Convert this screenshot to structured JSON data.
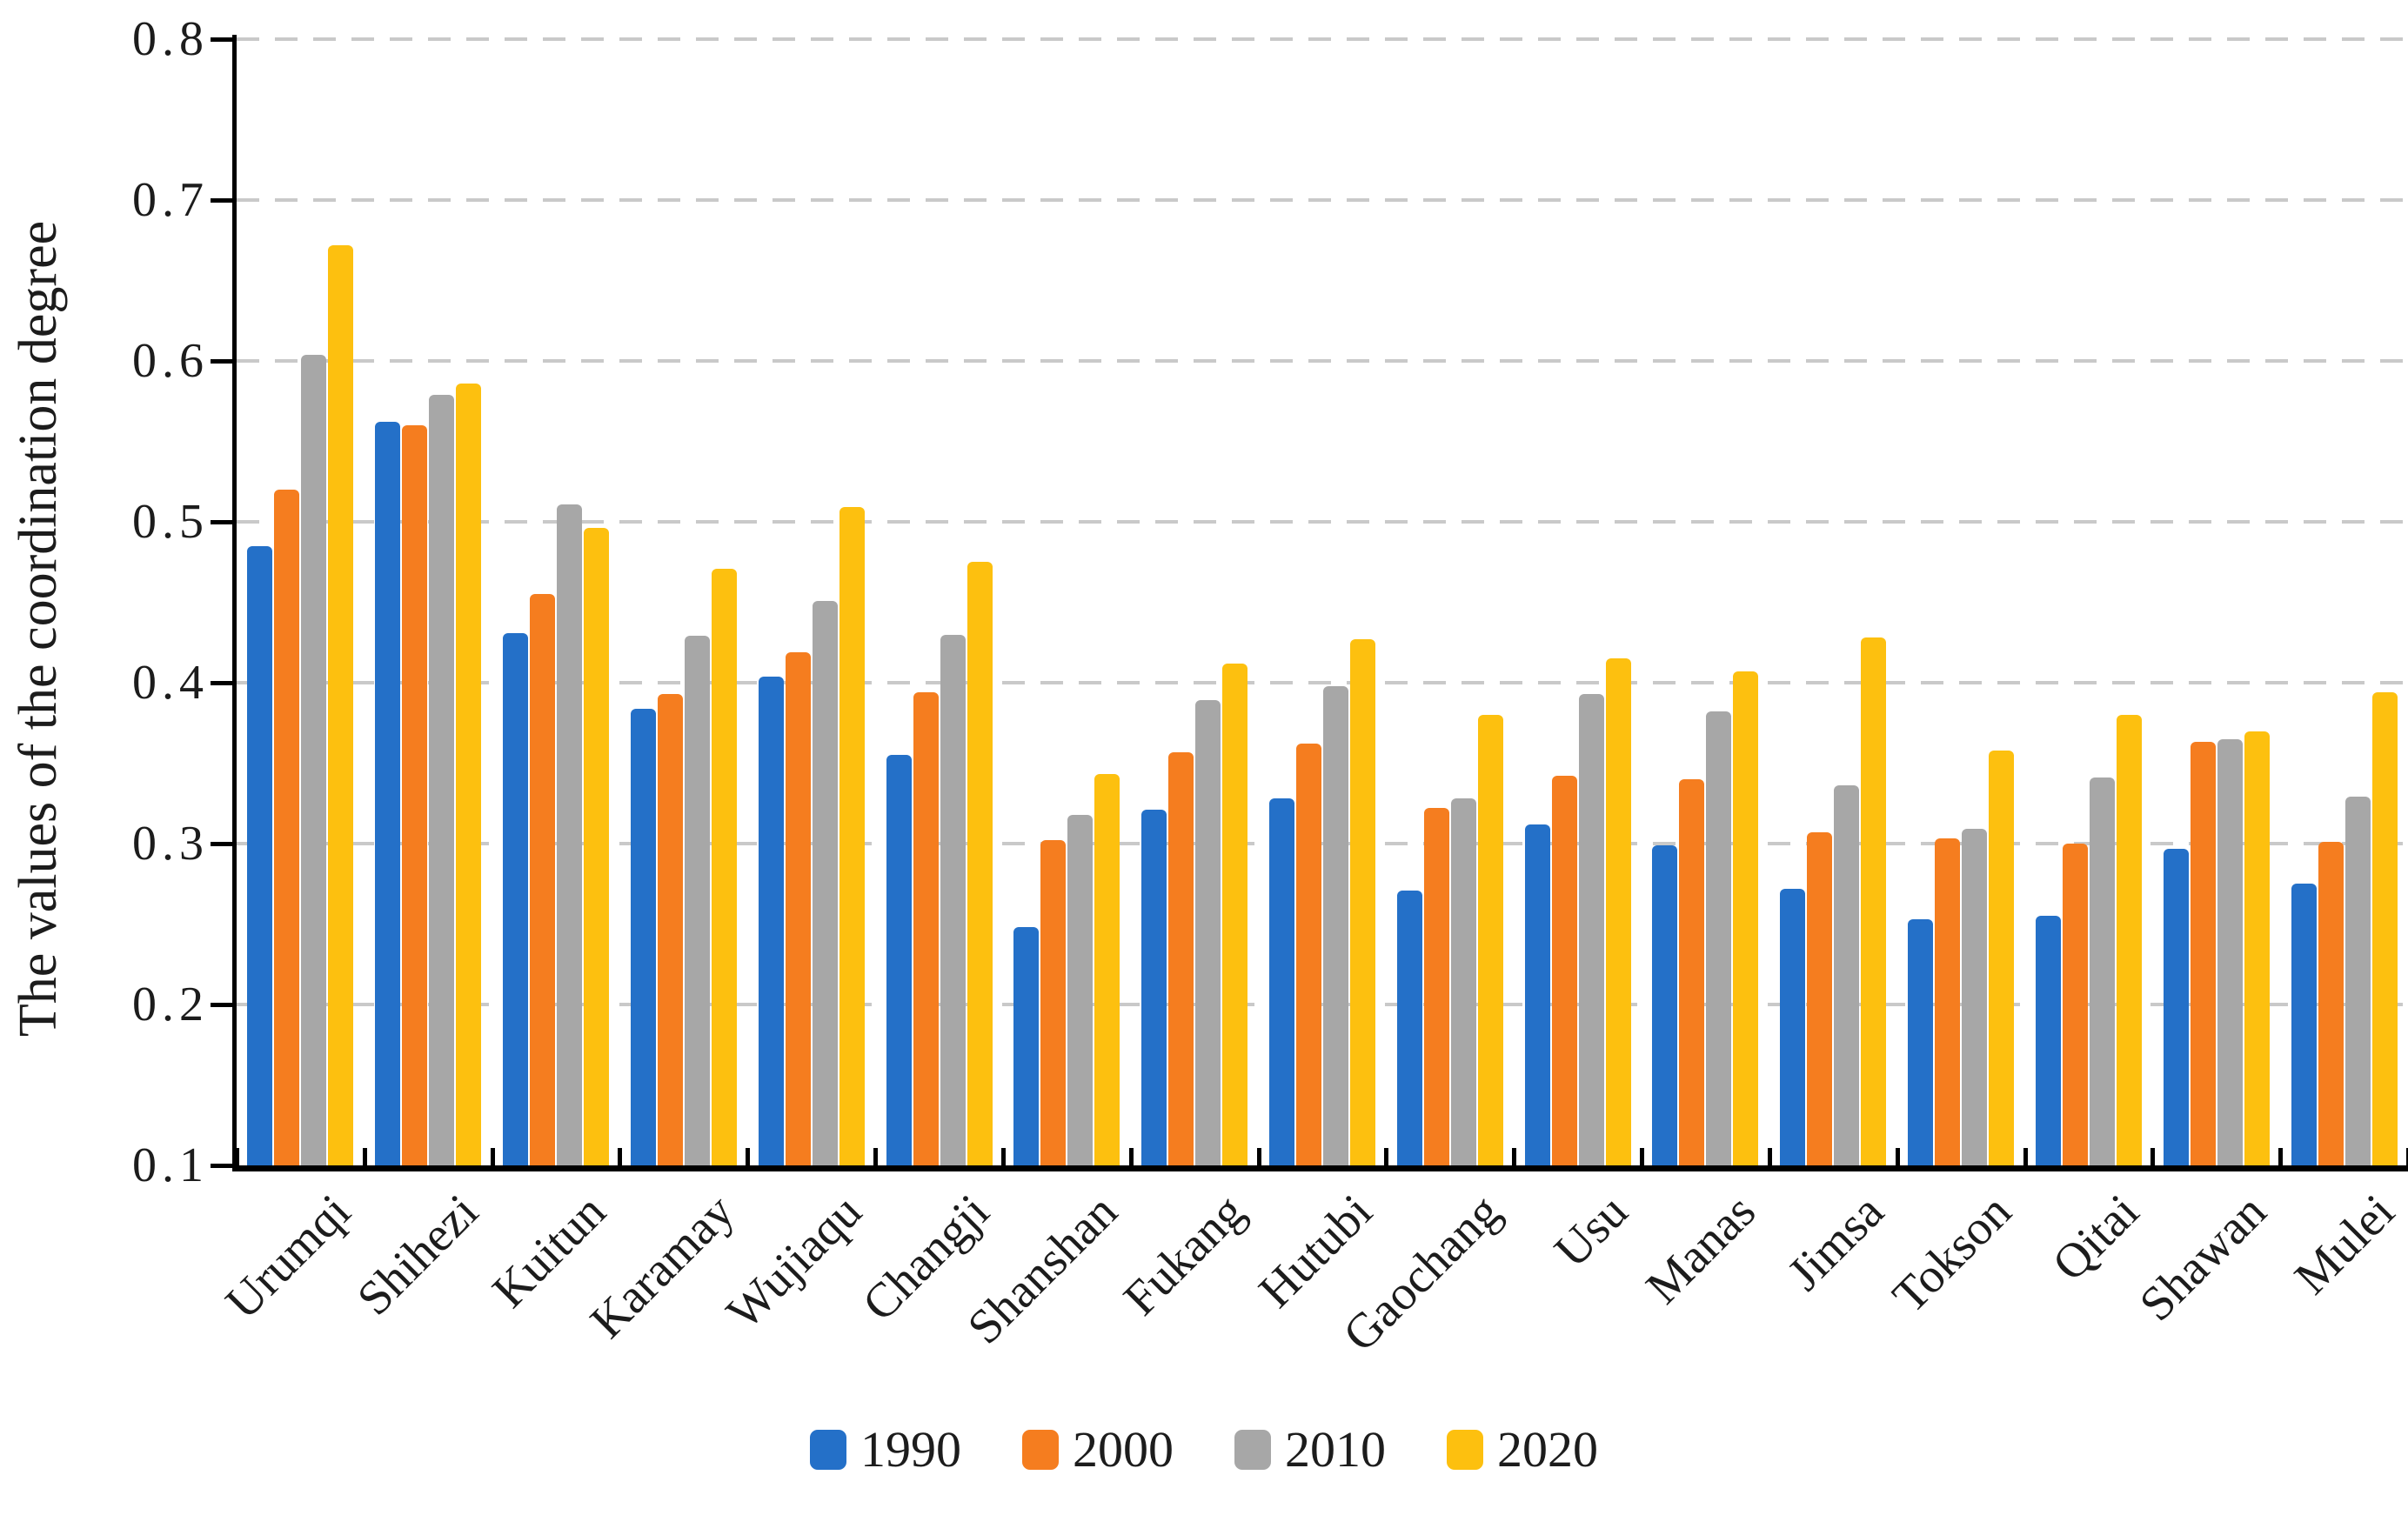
{
  "figure": {
    "background": "#ffffff",
    "axis_color": "#000000",
    "gridline_color": "#c9c9c9",
    "text_color": "#1c1c1c"
  },
  "chart_data": {
    "type": "bar",
    "title": "",
    "xlabel": "",
    "ylabel": "The values of the coordination degree",
    "ylim": [
      0.1,
      0.8
    ],
    "ytick_step": 0.1,
    "y_tick_labels": [
      "0.8",
      "0.7",
      "0.6",
      "0.5",
      "0.4",
      "0.3",
      "0.2",
      "0.1"
    ],
    "grid": "horizontal-dashed",
    "legend_position": "bottom",
    "categories": [
      "Urumqi",
      "Shihezi",
      "Kuitun",
      "Karamay",
      "Wujiaqu",
      "Changji",
      "Shanshan",
      "Fukang",
      "Hutubi",
      "Gaochang",
      "Usu",
      "Manas",
      "Jimsa",
      "Tokson",
      "Qitai",
      "Shawan",
      "Mulei"
    ],
    "series": [
      {
        "name": "1990",
        "color": "#2470C8",
        "values": [
          0.485,
          0.562,
          0.431,
          0.384,
          0.404,
          0.355,
          0.248,
          0.321,
          0.328,
          0.271,
          0.312,
          0.299,
          0.272,
          0.253,
          0.255,
          0.297,
          0.275
        ]
      },
      {
        "name": "2000",
        "color": "#F57D1F",
        "values": [
          0.52,
          0.56,
          0.455,
          0.393,
          0.419,
          0.394,
          0.302,
          0.357,
          0.362,
          0.322,
          0.342,
          0.34,
          0.307,
          0.303,
          0.3,
          0.363,
          0.301
        ]
      },
      {
        "name": "2010",
        "color": "#A7A7A7",
        "values": [
          0.604,
          0.579,
          0.511,
          0.429,
          0.451,
          0.43,
          0.318,
          0.389,
          0.398,
          0.328,
          0.393,
          0.382,
          0.336,
          0.309,
          0.341,
          0.365,
          0.329
        ]
      },
      {
        "name": "2020",
        "color": "#FDC00F",
        "values": [
          0.672,
          0.586,
          0.496,
          0.471,
          0.509,
          0.475,
          0.343,
          0.412,
          0.427,
          0.38,
          0.415,
          0.407,
          0.428,
          0.358,
          0.38,
          0.37,
          0.394
        ]
      }
    ]
  }
}
